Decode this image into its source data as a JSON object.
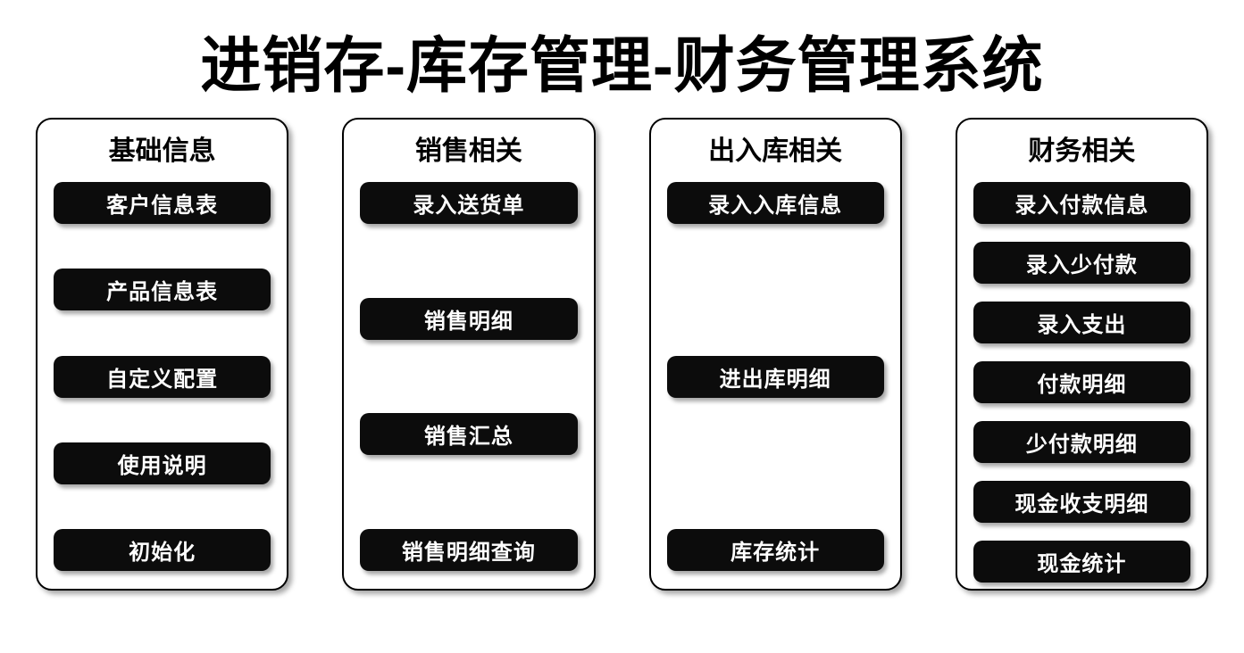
{
  "title": "进销存-库存管理-财务管理系统",
  "style": {
    "background_color": "#ffffff",
    "title_color": "#000000",
    "title_fontsize": 68,
    "panel_border_color": "#000000",
    "panel_border_radius": 18,
    "panel_shadow": "4px 4px 6px rgba(0,0,0,0.35)",
    "panel_title_fontsize": 30,
    "button_bg": "#0c0c0c",
    "button_color": "#ffffff",
    "button_fontsize": 24,
    "button_radius": 10,
    "button_shadow": "3px 4px 5px rgba(0,0,0,0.35)"
  },
  "panels": [
    {
      "title": "基础信息",
      "layout": "spread",
      "buttons": [
        "客户信息表",
        "产品信息表",
        "自定义配置",
        "使用说明",
        "初始化"
      ]
    },
    {
      "title": "销售相关",
      "layout": "spread",
      "buttons": [
        "录入送货单",
        "销售明细",
        "销售汇总",
        "销售明细查询"
      ]
    },
    {
      "title": "出入库相关",
      "layout": "spread",
      "buttons": [
        "录入入库信息",
        "进出库明细",
        "库存统计"
      ]
    },
    {
      "title": "财务相关",
      "layout": "compact",
      "buttons": [
        "录入付款信息",
        "录入少付款",
        "录入支出",
        "付款明细",
        "少付款明细",
        "现金收支明细",
        "现金统计"
      ]
    }
  ]
}
